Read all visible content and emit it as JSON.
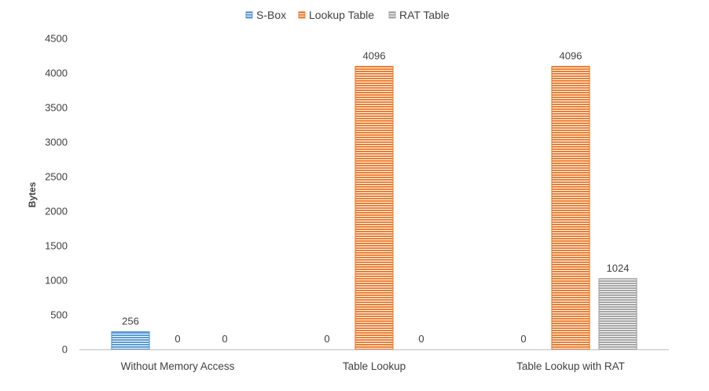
{
  "chart_data": {
    "type": "bar",
    "title": "",
    "xlabel": "",
    "ylabel": "Bytes",
    "ylim": [
      0,
      4500
    ],
    "ytick_step": 500,
    "grid": false,
    "legend_position": "top",
    "categories": [
      "Without Memory Access",
      "Table Lookup",
      "Table Lookup with RAT"
    ],
    "series": [
      {
        "name": "S-Box",
        "values": [
          256,
          0,
          0
        ],
        "color": "#5b9bd5"
      },
      {
        "name": "Lookup Table",
        "values": [
          0,
          4096,
          4096
        ],
        "color": "#ed7d31"
      },
      {
        "name": "RAT Table",
        "values": [
          0,
          0,
          1024
        ],
        "color": "#a5a5a5"
      }
    ]
  }
}
